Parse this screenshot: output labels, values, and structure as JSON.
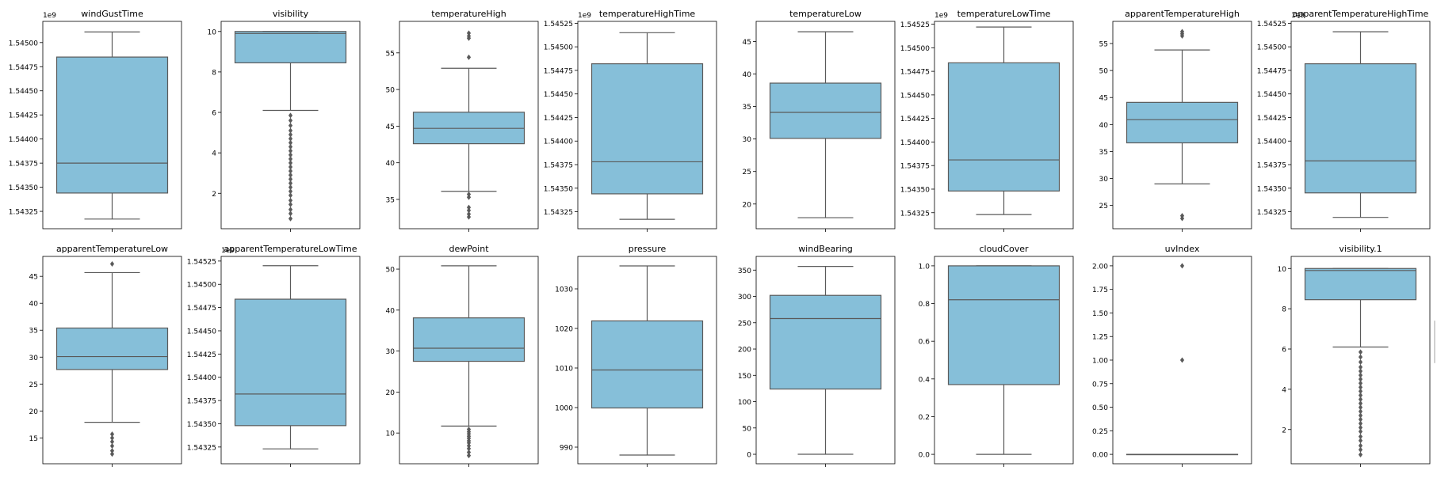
{
  "chart_data": [
    {
      "type": "box",
      "title": "windGustTime",
      "offset_label": "1e9",
      "ylim": [
        1.54307,
        1.54522
      ],
      "yticks": [
        1.54325,
        1.5435,
        1.54375,
        1.544,
        1.54425,
        1.5445,
        1.54475,
        1.545
      ],
      "ytick_labels": [
        "1.54325",
        "1.54350",
        "1.54375",
        "1.54400",
        "1.54425",
        "1.54450",
        "1.54475",
        "1.54500"
      ],
      "box": {
        "whislo": 1.54317,
        "q1": 1.54344,
        "med": 1.54375,
        "q3": 1.54485,
        "whishi": 1.54511
      },
      "outliers": []
    },
    {
      "type": "box",
      "title": "visibility",
      "offset_label": "",
      "ylim": [
        0.25,
        10.5
      ],
      "yticks": [
        2,
        4,
        6,
        8,
        10
      ],
      "ytick_labels": [
        "2",
        "4",
        "6",
        "8",
        "10"
      ],
      "box": {
        "whislo": 6.1,
        "q1": 8.45,
        "med": 9.9,
        "q3": 10.0,
        "whishi": 10.0
      },
      "outliers": [
        5.85,
        5.6,
        5.35,
        5.1,
        4.9,
        4.7,
        4.5,
        4.3,
        4.1,
        3.9,
        3.7,
        3.5,
        3.3,
        3.1,
        2.9,
        2.7,
        2.5,
        2.3,
        2.1,
        1.9,
        1.65,
        1.45,
        1.2,
        1.0,
        0.75
      ]
    },
    {
      "type": "box",
      "title": "temperatureHigh",
      "offset_label": "",
      "ylim": [
        31.0,
        59.3
      ],
      "yticks": [
        35,
        40,
        45,
        50,
        55
      ],
      "ytick_labels": [
        "35",
        "40",
        "45",
        "50",
        "55"
      ],
      "box": {
        "whislo": 36.1,
        "q1": 42.6,
        "med": 44.7,
        "q3": 46.9,
        "whishi": 52.9
      },
      "outliers": [
        57.7,
        57.3,
        57.0,
        54.4,
        35.7,
        35.3,
        33.9,
        33.5,
        33.0,
        32.6
      ]
    },
    {
      "type": "box",
      "title": "temperatureHighTime",
      "offset_label": "1e9",
      "ylim": [
        1.54307,
        1.54527
      ],
      "yticks": [
        1.54325,
        1.5435,
        1.54375,
        1.544,
        1.54425,
        1.5445,
        1.54475,
        1.545,
        1.54525
      ],
      "ytick_labels": [
        "1.54325",
        "1.54350",
        "1.54375",
        "1.54400",
        "1.54425",
        "1.54450",
        "1.54475",
        "1.54500",
        "1.54525"
      ],
      "box": {
        "whislo": 1.54317,
        "q1": 1.54344,
        "med": 1.54378,
        "q3": 1.54482,
        "whishi": 1.54515
      },
      "outliers": []
    },
    {
      "type": "box",
      "title": "temperatureLow",
      "offset_label": "",
      "ylim": [
        16.2,
        48.1
      ],
      "yticks": [
        20,
        25,
        30,
        35,
        40,
        45
      ],
      "ytick_labels": [
        "20",
        "25",
        "30",
        "35",
        "40",
        "45"
      ],
      "box": {
        "whislo": 17.9,
        "q1": 30.1,
        "med": 34.1,
        "q3": 38.6,
        "whishi": 46.5
      },
      "outliers": []
    },
    {
      "type": "box",
      "title": "temperatureLowTime",
      "offset_label": "1e9",
      "ylim": [
        1.54308,
        1.54528
      ],
      "yticks": [
        1.54325,
        1.5435,
        1.54375,
        1.544,
        1.54425,
        1.5445,
        1.54475,
        1.545,
        1.54525
      ],
      "ytick_labels": [
        "1.54325",
        "1.54350",
        "1.54375",
        "1.54400",
        "1.54425",
        "1.54450",
        "1.54475",
        "1.54500",
        "1.54525"
      ],
      "box": {
        "whislo": 1.54323,
        "q1": 1.54348,
        "med": 1.54381,
        "q3": 1.54484,
        "whishi": 1.54522
      },
      "outliers": []
    },
    {
      "type": "box",
      "title": "apparentTemperatureHigh",
      "offset_label": "",
      "ylim": [
        20.7,
        59.1
      ],
      "yticks": [
        25,
        30,
        35,
        40,
        45,
        50,
        55
      ],
      "ytick_labels": [
        "25",
        "30",
        "35",
        "40",
        "45",
        "50",
        "55"
      ],
      "box": {
        "whislo": 29.0,
        "q1": 36.6,
        "med": 40.9,
        "q3": 44.1,
        "whishi": 53.8
      },
      "outliers": [
        57.2,
        56.8,
        56.4,
        23.1,
        22.6
      ]
    },
    {
      "type": "box",
      "title": "apparentTemperatureHighTime",
      "offset_label": "1e9",
      "ylim": [
        1.54307,
        1.54527
      ],
      "yticks": [
        1.54325,
        1.5435,
        1.54375,
        1.544,
        1.54425,
        1.5445,
        1.54475,
        1.545,
        1.54525
      ],
      "ytick_labels": [
        "1.54325",
        "1.54350",
        "1.54375",
        "1.54400",
        "1.54425",
        "1.54450",
        "1.54475",
        "1.54500",
        "1.54525"
      ],
      "box": {
        "whislo": 1.54319,
        "q1": 1.54345,
        "med": 1.54379,
        "q3": 1.54482,
        "whishi": 1.54516
      },
      "outliers": []
    },
    {
      "type": "box",
      "title": "apparentTemperatureLow",
      "offset_label": "",
      "ylim": [
        10.2,
        48.7
      ],
      "yticks": [
        15,
        20,
        25,
        30,
        35,
        40,
        45
      ],
      "ytick_labels": [
        "15",
        "20",
        "25",
        "30",
        "35",
        "40",
        "45"
      ],
      "box": {
        "whislo": 17.9,
        "q1": 27.7,
        "med": 30.1,
        "q3": 35.4,
        "whishi": 45.7
      },
      "outliers": [
        47.3,
        15.7,
        15.0,
        14.3,
        13.5,
        12.6,
        12.0
      ]
    },
    {
      "type": "box",
      "title": "apparentTemperatureLowTime",
      "offset_label": "1e9",
      "ylim": [
        1.54307,
        1.5453
      ],
      "yticks": [
        1.54325,
        1.5435,
        1.54375,
        1.544,
        1.54425,
        1.5445,
        1.54475,
        1.545,
        1.54525
      ],
      "ytick_labels": [
        "1.54325",
        "1.54350",
        "1.54375",
        "1.54400",
        "1.54425",
        "1.54450",
        "1.54475",
        "1.54500",
        "1.54525"
      ],
      "box": {
        "whislo": 1.54323,
        "q1": 1.54348,
        "med": 1.54382,
        "q3": 1.54484,
        "whishi": 1.5452
      },
      "outliers": []
    },
    {
      "type": "box",
      "title": "dewPoint",
      "offset_label": "",
      "ylim": [
        2.5,
        53.1
      ],
      "yticks": [
        10,
        20,
        30,
        40,
        50
      ],
      "ytick_labels": [
        "10",
        "20",
        "30",
        "40",
        "50"
      ],
      "box": {
        "whislo": 11.7,
        "q1": 27.5,
        "med": 30.7,
        "q3": 38.1,
        "whishi": 50.8
      },
      "outliers": [
        10.9,
        10.3,
        9.8,
        9.2,
        8.7,
        8.1,
        7.6,
        6.9,
        6.2,
        5.3,
        4.5
      ]
    },
    {
      "type": "box",
      "title": "pressure",
      "offset_label": "",
      "ylim": [
        985.8,
        1038.2
      ],
      "yticks": [
        990,
        1000,
        1010,
        1020,
        1030
      ],
      "ytick_labels": [
        "990",
        "1000",
        "1010",
        "1020",
        "1030"
      ],
      "box": {
        "whislo": 988.0,
        "q1": 999.9,
        "med": 1009.5,
        "q3": 1021.9,
        "whishi": 1035.8
      },
      "outliers": []
    },
    {
      "type": "box",
      "title": "windBearing",
      "offset_label": "",
      "ylim": [
        -18,
        376
      ],
      "yticks": [
        0,
        50,
        100,
        150,
        200,
        250,
        300,
        350
      ],
      "ytick_labels": [
        "0",
        "50",
        "100",
        "150",
        "200",
        "250",
        "300",
        "350"
      ],
      "box": {
        "whislo": 0,
        "q1": 124,
        "med": 258,
        "q3": 302,
        "whishi": 357
      },
      "outliers": []
    },
    {
      "type": "box",
      "title": "cloudCover",
      "offset_label": "",
      "ylim": [
        -0.05,
        1.05
      ],
      "yticks": [
        0.0,
        0.2,
        0.4,
        0.6,
        0.8,
        1.0
      ],
      "ytick_labels": [
        "0.0",
        "0.2",
        "0.4",
        "0.6",
        "0.8",
        "1.0"
      ],
      "box": {
        "whislo": 0.0,
        "q1": 0.37,
        "med": 0.82,
        "q3": 1.0,
        "whishi": 1.0
      },
      "outliers": []
    },
    {
      "type": "box",
      "title": "uvIndex",
      "offset_label": "",
      "ylim": [
        -0.1,
        2.1
      ],
      "yticks": [
        0.0,
        0.25,
        0.5,
        0.75,
        1.0,
        1.25,
        1.5,
        1.75,
        2.0
      ],
      "ytick_labels": [
        "0.00",
        "0.25",
        "0.50",
        "0.75",
        "1.00",
        "1.25",
        "1.50",
        "1.75",
        "2.00"
      ],
      "box": {
        "whislo": 0.0,
        "q1": 0.0,
        "med": 0.0,
        "q3": 0.0,
        "whishi": 0.0
      },
      "outliers": [
        2.0,
        1.0
      ]
    },
    {
      "type": "box",
      "title": "visibility.1",
      "offset_label": "",
      "ylim": [
        0.3,
        10.6
      ],
      "yticks": [
        2,
        4,
        6,
        8,
        10
      ],
      "ytick_labels": [
        "2",
        "4",
        "6",
        "8",
        "10"
      ],
      "box": {
        "whislo": 6.1,
        "q1": 8.45,
        "med": 9.9,
        "q3": 10.0,
        "whishi": 10.0
      },
      "outliers": [
        5.85,
        5.6,
        5.35,
        5.1,
        4.9,
        4.7,
        4.5,
        4.3,
        4.1,
        3.9,
        3.7,
        3.5,
        3.3,
        3.1,
        2.9,
        2.7,
        2.5,
        2.3,
        2.1,
        1.9,
        1.65,
        1.45,
        1.2,
        1.0,
        0.75
      ]
    }
  ],
  "colors": {
    "box_fill": "#86bfd9",
    "line": "#5a5a5a",
    "outlier": "#5a5a5a",
    "frame": "#000000"
  }
}
